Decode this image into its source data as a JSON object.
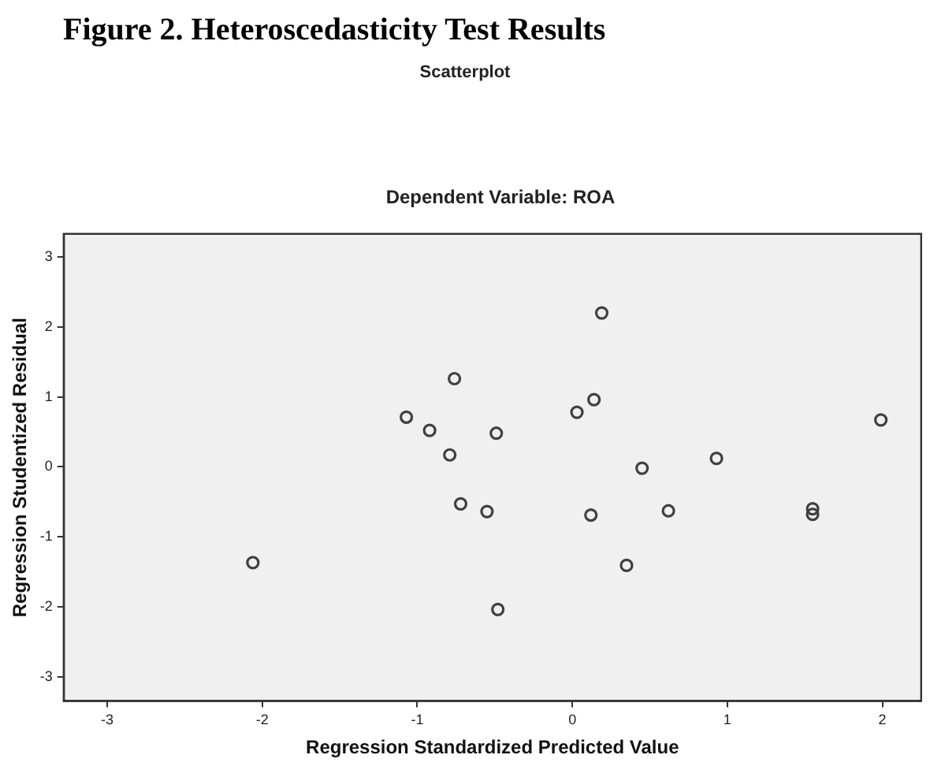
{
  "chart_data": {
    "type": "scatter",
    "title": "Figure 2. Heteroscedasticity Test Results",
    "subtitle": "Scatterplot",
    "annotations": [
      "Dependent Variable: ROA"
    ],
    "xlabel": "Regression Standardized Predicted Value",
    "ylabel": "Regression Studentized Residual",
    "marker": "circle",
    "xlim": [
      -3.28,
      2.25
    ],
    "ylim": [
      -3.35,
      3.33
    ],
    "xticks": [
      -3,
      -2,
      -1,
      0,
      1,
      2
    ],
    "yticks": [
      -3,
      -2,
      -1,
      0,
      1,
      2,
      3
    ],
    "series": [
      {
        "color": "#404040",
        "x": [
          0.19,
          -0.76,
          0.14,
          -1.07,
          0.03,
          -0.92,
          -0.49,
          1.99,
          -0.79,
          0.45,
          0.93,
          -0.72,
          -0.55,
          0.12,
          0.62,
          1.55,
          1.55,
          -2.06,
          0.35,
          -0.48
        ],
        "values": [
          2.2,
          1.26,
          0.96,
          0.71,
          0.78,
          0.52,
          0.48,
          0.67,
          0.17,
          -0.02,
          0.12,
          -0.53,
          -0.64,
          -0.69,
          -0.63,
          -0.6,
          -0.68,
          -1.37,
          -1.41,
          -2.04
        ]
      }
    ]
  }
}
